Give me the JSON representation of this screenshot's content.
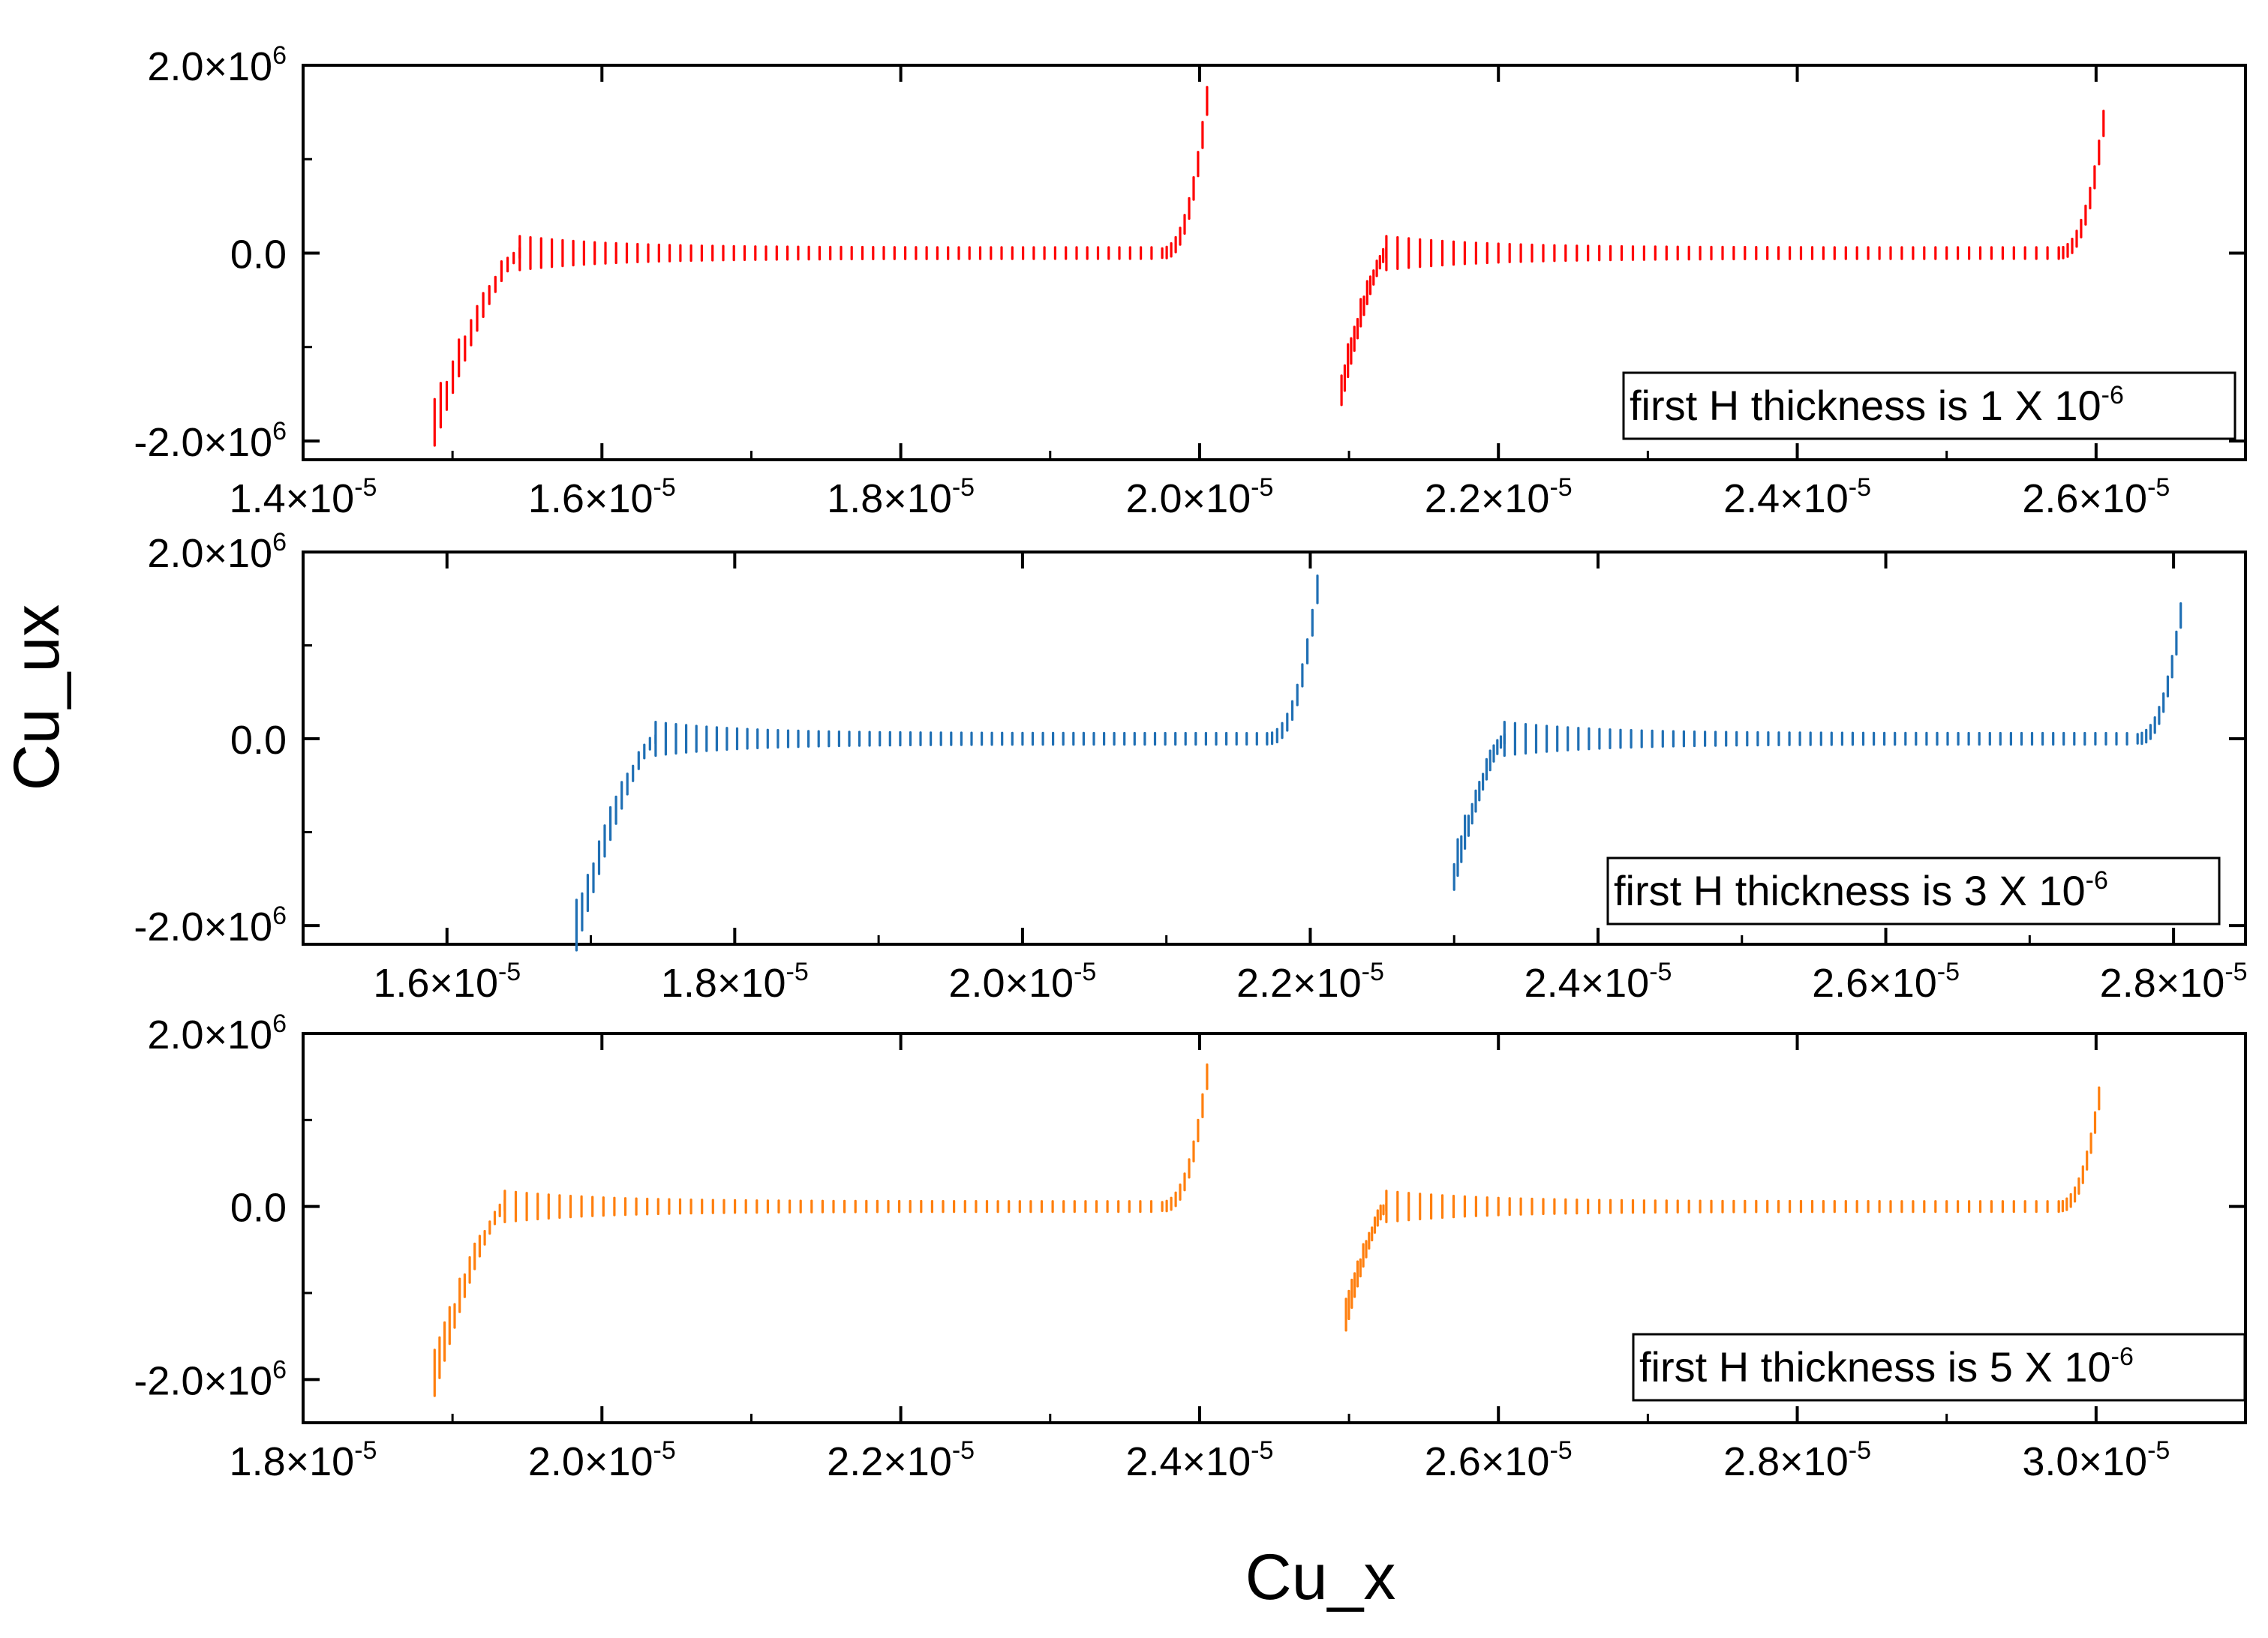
{
  "figure": {
    "xlabel": "Cu_x",
    "ylabel": "Cu_ux"
  },
  "chart_data": [
    {
      "type": "scatter",
      "legend": "first H thickness is 1 X 10",
      "legend_exp": "-6",
      "legend_position": "bottom-right",
      "color": "#ff0000",
      "xlim": [
        1.4e-05,
        2.7e-05
      ],
      "ylim": [
        -2200000.0,
        2000000.0
      ],
      "x_ticks": [
        1.4e-05,
        1.6e-05,
        1.8e-05,
        2e-05,
        2.2e-05,
        2.4e-05,
        2.6e-05
      ],
      "x_tick_labels": [
        {
          "mantissa": "1.4×10",
          "exp": "-5"
        },
        {
          "mantissa": "1.6×10",
          "exp": "-5"
        },
        {
          "mantissa": "1.8×10",
          "exp": "-5"
        },
        {
          "mantissa": "2.0×10",
          "exp": "-5"
        },
        {
          "mantissa": "2.2×10",
          "exp": "-5"
        },
        {
          "mantissa": "2.4×10",
          "exp": "-5"
        },
        {
          "mantissa": "2.6×10",
          "exp": "-5"
        }
      ],
      "y_ticks": [
        -2000000.0,
        0,
        2000000.0
      ],
      "y_tick_labels": [
        {
          "mantissa": "-2.0×10",
          "exp": "6"
        },
        {
          "mantissa": "0.0",
          "exp": ""
        },
        {
          "mantissa": "2.0×10",
          "exp": "6"
        }
      ],
      "segments": [
        {
          "x_start": 1.488e-05,
          "x_plateau": 1.545e-05,
          "x_rise": 1.975e-05,
          "x_end": 2.005e-05,
          "y_start": -1850000.0,
          "y_end": 1620000.0
        },
        {
          "x_start": 2.095e-05,
          "x_plateau": 2.125e-05,
          "x_rise": 2.575e-05,
          "x_end": 2.605e-05,
          "y_start": -1450000.0,
          "y_end": 1380000.0
        }
      ]
    },
    {
      "type": "scatter",
      "legend": "first H thickness is 3 X 10",
      "legend_exp": "-6",
      "legend_position": "bottom-right",
      "color": "#1f6fb4",
      "xlim": [
        1.5e-05,
        2.85e-05
      ],
      "ylim": [
        -2200000.0,
        2000000.0
      ],
      "x_ticks": [
        1.6e-05,
        1.8e-05,
        2e-05,
        2.2e-05,
        2.4e-05,
        2.6e-05,
        2.8e-05
      ],
      "x_tick_labels": [
        {
          "mantissa": "1.6×10",
          "exp": "-5"
        },
        {
          "mantissa": "1.8×10",
          "exp": "-5"
        },
        {
          "mantissa": "2.0×10",
          "exp": "-5"
        },
        {
          "mantissa": "2.2×10",
          "exp": "-5"
        },
        {
          "mantissa": "2.4×10",
          "exp": "-5"
        },
        {
          "mantissa": "2.6×10",
          "exp": "-5"
        },
        {
          "mantissa": "2.8×10",
          "exp": "-5"
        }
      ],
      "y_ticks": [
        -2000000.0,
        0,
        2000000.0
      ],
      "y_tick_labels": [
        {
          "mantissa": "-2.0×10",
          "exp": "6"
        },
        {
          "mantissa": "0.0",
          "exp": ""
        },
        {
          "mantissa": "2.0×10",
          "exp": "6"
        }
      ],
      "segments": [
        {
          "x_start": 1.69e-05,
          "x_plateau": 1.745e-05,
          "x_rise": 2.17e-05,
          "x_end": 2.205e-05,
          "y_start": -2050000.0,
          "y_end": 1600000.0
        },
        {
          "x_start": 2.3e-05,
          "x_plateau": 2.335e-05,
          "x_rise": 2.775e-05,
          "x_end": 2.805e-05,
          "y_start": -1450000.0,
          "y_end": 1320000.0
        }
      ]
    },
    {
      "type": "scatter",
      "legend": "first H thickness is 5 X 10",
      "legend_exp": "-6",
      "legend_position": "bottom-right",
      "color": "#ff7f0e",
      "xlim": [
        1.8e-05,
        3.1e-05
      ],
      "ylim": [
        -2500000.0,
        2000000.0
      ],
      "x_ticks": [
        1.8e-05,
        2e-05,
        2.2e-05,
        2.4e-05,
        2.6e-05,
        2.8e-05,
        3e-05
      ],
      "x_tick_labels": [
        {
          "mantissa": "1.8×10",
          "exp": "-5"
        },
        {
          "mantissa": "2.0×10",
          "exp": "-5"
        },
        {
          "mantissa": "2.2×10",
          "exp": "-5"
        },
        {
          "mantissa": "2.4×10",
          "exp": "-5"
        },
        {
          "mantissa": "2.6×10",
          "exp": "-5"
        },
        {
          "mantissa": "2.8×10",
          "exp": "-5"
        },
        {
          "mantissa": "3.0×10",
          "exp": "-5"
        }
      ],
      "y_ticks": [
        -2000000.0,
        0,
        2000000.0
      ],
      "y_tick_labels": [
        {
          "mantissa": "-2.0×10",
          "exp": "6"
        },
        {
          "mantissa": "0.0",
          "exp": ""
        },
        {
          "mantissa": "2.0×10",
          "exp": "6"
        }
      ],
      "segments": [
        {
          "x_start": 1.888e-05,
          "x_plateau": 1.935e-05,
          "x_rise": 2.375e-05,
          "x_end": 2.405e-05,
          "y_start": -1980000.0,
          "y_end": 1500000.0
        },
        {
          "x_start": 2.498e-05,
          "x_plateau": 2.525e-05,
          "x_rise": 2.975e-05,
          "x_end": 3.002e-05,
          "y_start": -1280000.0,
          "y_end": 1250000.0
        }
      ]
    }
  ]
}
